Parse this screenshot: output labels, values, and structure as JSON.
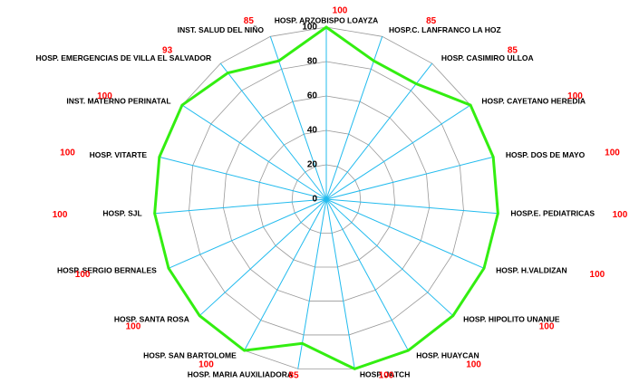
{
  "chart_data": {
    "type": "radar",
    "categories": [
      "HOSP. ARZOBISPO LOAYZA",
      "HOSP.C. LANFRANCO LA HOZ",
      "HOSP. CASIMIRO ULLOA",
      "HOSP. CAYETANO HEREDIA",
      "HOSP. DOS DE MAYO",
      "HOSP.E. PEDIATRICAS",
      "HOSP. H.VALDIZAN",
      "HOSP. HIPOLITO UNANUE",
      "HOSP. HUAYCAN",
      "HOSP. JATCH",
      "HOSP. MARIA AUXILIADORA",
      "HOSP. SAN BARTOLOME",
      "HOSP. SANTA ROSA",
      "HOSP. SERGIO BERNALES",
      "HOSP. SJL",
      "HOSP. VITARTE",
      "INST. MATERNO PERINATAL",
      "HOSP. EMERGENCIAS DE VILLA EL SALVADOR",
      "INST. SALUD DEL NIÑO"
    ],
    "values": [
      100,
      85,
      85,
      100,
      100,
      100,
      100,
      100,
      100,
      100,
      85,
      100,
      100,
      100,
      100,
      100,
      100,
      93,
      85
    ],
    "color": "#33ee11",
    "ylim": [
      0,
      100
    ],
    "yticks": [
      0,
      20,
      40,
      60,
      80,
      100
    ],
    "grid": true
  }
}
